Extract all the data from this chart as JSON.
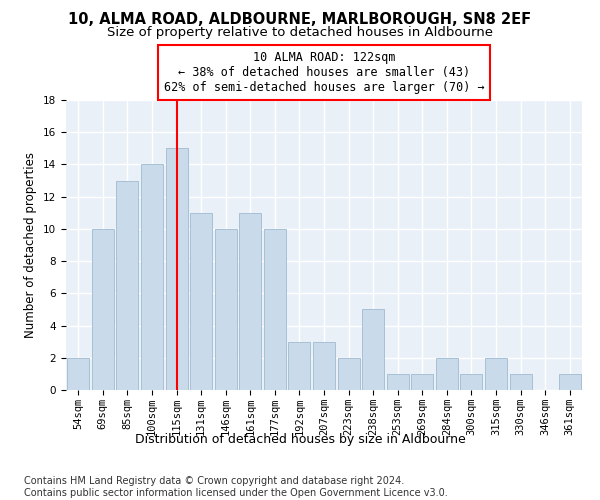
{
  "title": "10, ALMA ROAD, ALDBOURNE, MARLBOROUGH, SN8 2EF",
  "subtitle": "Size of property relative to detached houses in Aldbourne",
  "xlabel": "Distribution of detached houses by size in Aldbourne",
  "ylabel": "Number of detached properties",
  "categories": [
    "54sqm",
    "69sqm",
    "85sqm",
    "100sqm",
    "115sqm",
    "131sqm",
    "146sqm",
    "161sqm",
    "177sqm",
    "192sqm",
    "207sqm",
    "223sqm",
    "238sqm",
    "253sqm",
    "269sqm",
    "284sqm",
    "300sqm",
    "315sqm",
    "330sqm",
    "346sqm",
    "361sqm"
  ],
  "values": [
    2,
    10,
    13,
    14,
    15,
    11,
    10,
    11,
    10,
    3,
    3,
    2,
    5,
    1,
    1,
    2,
    1,
    2,
    1,
    0,
    1
  ],
  "bar_color": "#c9daea",
  "bar_edge_color": "#a8c0d4",
  "vline_x_index": 4,
  "vline_color": "red",
  "annotation_text": "10 ALMA ROAD: 122sqm\n← 38% of detached houses are smaller (43)\n62% of semi-detached houses are larger (70) →",
  "annotation_box_color": "white",
  "annotation_box_edge": "red",
  "ylim": [
    0,
    18
  ],
  "yticks": [
    0,
    2,
    4,
    6,
    8,
    10,
    12,
    14,
    16,
    18
  ],
  "footer": "Contains HM Land Registry data © Crown copyright and database right 2024.\nContains public sector information licensed under the Open Government Licence v3.0.",
  "bg_color": "#eaf0f8",
  "grid_color": "white",
  "title_fontsize": 10.5,
  "subtitle_fontsize": 9.5,
  "xlabel_fontsize": 9,
  "ylabel_fontsize": 8.5,
  "tick_fontsize": 7.5,
  "annotation_fontsize": 8.5,
  "footer_fontsize": 7
}
